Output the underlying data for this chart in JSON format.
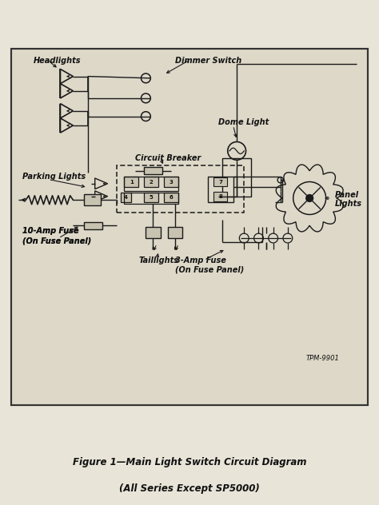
{
  "title": "Figure 1—Main Light Switch Circuit Diagram",
  "subtitle": "(All Series Except SP5000)",
  "tpm_label": "TPM-9901",
  "page_bg": "#e8e4d8",
  "diagram_bg": "#ddd8c8",
  "border_color": "#333333",
  "line_color": "#1a1a1a",
  "text_color": "#111111",
  "fill_color": "#c8c2b0",
  "fig_width": 4.74,
  "fig_height": 6.32,
  "labels": {
    "headlights": "Headlights",
    "dimmer_switch": "Dimmer Switch",
    "dome_light": "Dome Light",
    "circuit_breaker": "Circuit Breaker",
    "parking_lights": "Parking Lights",
    "ten_amp_fuse": "10-Amp Fuse\n(On Fuse Panel)",
    "taillights": "Taillights",
    "three_amp_fuse": "3-Amp Fuse\n(On Fuse Panel)",
    "panel_lights": "Panel\nLights"
  }
}
